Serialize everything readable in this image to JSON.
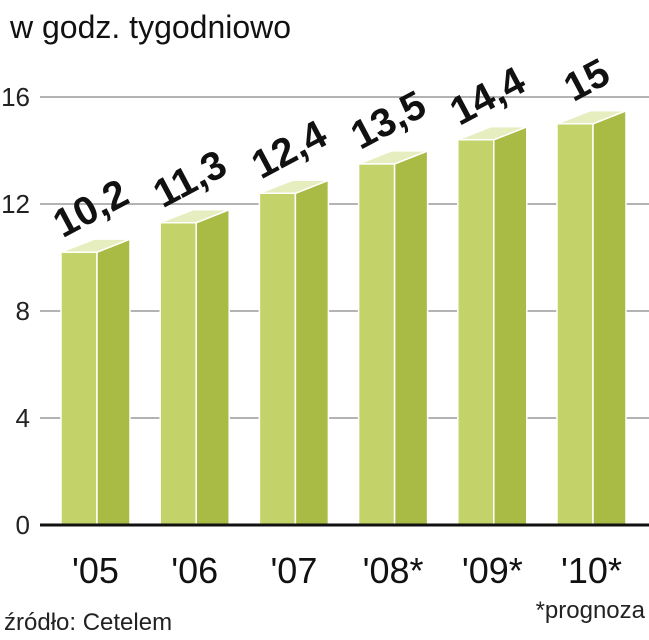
{
  "chart_data": {
    "type": "bar",
    "title": "w godz. tygodniowo",
    "categories": [
      "'05",
      "'06",
      "'07",
      "'08*",
      "'09*",
      "'10*"
    ],
    "values": [
      10.2,
      11.3,
      12.4,
      13.5,
      14.4,
      15
    ],
    "value_labels": [
      "10,2",
      "11,3",
      "12,4",
      "13,5",
      "14,4",
      "15"
    ],
    "yticks": [
      0,
      4,
      8,
      12,
      16
    ],
    "ylim": [
      0,
      16
    ],
    "grid": true,
    "source": "źródło: Cetelem",
    "note": "*prognoza",
    "colors": {
      "front": "#c3d36a",
      "side": "#a9bb45",
      "top": "#e6edbe",
      "edge": "#ffffff"
    }
  }
}
